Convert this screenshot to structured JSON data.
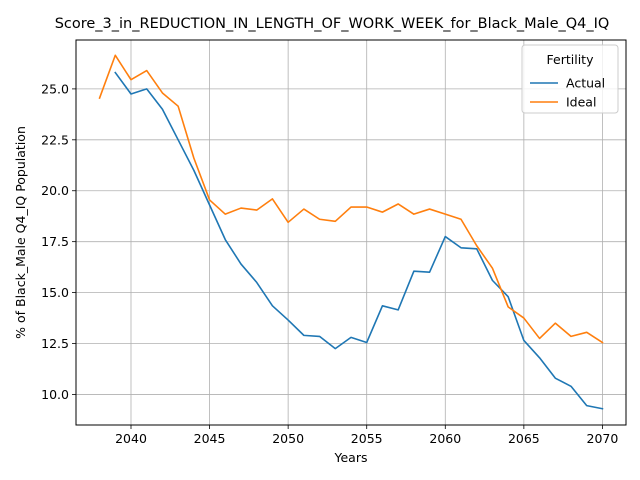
{
  "chart_data": {
    "type": "line",
    "title": "Score_3_in_REDUCTION_IN_LENGTH_OF_WORK_WEEK_for_Black_Male_Q4_IQ",
    "xlabel": "Years",
    "ylabel": "% of Black_Male Q4_IQ Population",
    "xlim": [
      2036.5,
      2071.5
    ],
    "ylim": [
      8.5,
      27.4
    ],
    "xticks": [
      2040,
      2045,
      2050,
      2055,
      2060,
      2065,
      2070
    ],
    "yticks": [
      10.0,
      12.5,
      15.0,
      17.5,
      20.0,
      22.5,
      25.0
    ],
    "xtick_labels": [
      "2040",
      "2045",
      "2050",
      "2055",
      "2060",
      "2065",
      "2070"
    ],
    "ytick_labels": [
      "10.0",
      "12.5",
      "15.0",
      "17.5",
      "20.0",
      "22.5",
      "25.0"
    ],
    "grid": true,
    "legend": {
      "title": "Fertility",
      "position": "top-right"
    },
    "series": [
      {
        "name": "Actual",
        "color": "#1f77b4",
        "x": [
          2039,
          2040,
          2041,
          2042,
          2043,
          2044,
          2045,
          2046,
          2047,
          2048,
          2049,
          2050,
          2051,
          2052,
          2053,
          2054,
          2055,
          2056,
          2057,
          2058,
          2059,
          2060,
          2061,
          2062,
          2063,
          2064,
          2065,
          2066,
          2067,
          2068,
          2069,
          2070
        ],
        "values": [
          25.8,
          24.75,
          25.0,
          24.0,
          22.5,
          21.0,
          19.3,
          17.6,
          16.4,
          15.5,
          14.35,
          13.65,
          12.9,
          12.85,
          12.25,
          12.8,
          12.55,
          14.35,
          14.15,
          16.05,
          16.0,
          17.75,
          17.2,
          17.15,
          15.6,
          14.8,
          12.65,
          11.8,
          10.8,
          10.4,
          9.45,
          9.3
        ]
      },
      {
        "name": "Ideal",
        "color": "#ff7f0e",
        "x": [
          2038,
          2039,
          2040,
          2041,
          2042,
          2043,
          2044,
          2045,
          2046,
          2047,
          2048,
          2049,
          2050,
          2051,
          2052,
          2053,
          2054,
          2055,
          2056,
          2057,
          2058,
          2059,
          2060,
          2061,
          2062,
          2063,
          2064,
          2065,
          2066,
          2067,
          2068,
          2069,
          2070
        ],
        "values": [
          24.55,
          26.65,
          25.45,
          25.9,
          24.8,
          24.15,
          21.6,
          19.55,
          18.85,
          19.15,
          19.05,
          19.6,
          18.45,
          19.1,
          18.6,
          18.5,
          19.2,
          19.2,
          18.95,
          19.35,
          18.85,
          19.1,
          18.85,
          18.6,
          17.3,
          16.2,
          14.3,
          13.75,
          12.75,
          13.5,
          12.85,
          13.05,
          12.55
        ]
      }
    ]
  }
}
